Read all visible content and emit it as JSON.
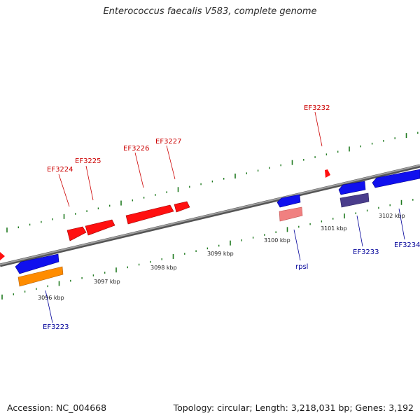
{
  "title": "Enterococcus faecalis V583, complete genome",
  "footer": {
    "accession": "Accession: NC_004668",
    "topology": "Topology: circular; Length: 3,218,031 bp; Genes: 3,192"
  },
  "colors": {
    "backbone": "#808080",
    "tick": "#1f7a1f",
    "forward_label": "#cc0000",
    "reverse_label": "#000099",
    "red_gene": "#ff1010",
    "pink_gene": "#f08080",
    "blue_gene": "#1010ee",
    "orange_gene": "#ff8c00",
    "purple_gene": "#4a3d8c"
  },
  "kbp_labels": [
    "3096 kbp",
    "3097 kbp",
    "3098 kbp",
    "3099 kbp",
    "3100 kbp",
    "3101 kbp",
    "3102 kbp"
  ],
  "forward_genes": [
    "EF3224",
    "EF3225",
    "EF3226",
    "EF3227",
    "EF3232"
  ],
  "reverse_genes": [
    "EF3223",
    "rpsl",
    "EF3233",
    "EF3234"
  ]
}
